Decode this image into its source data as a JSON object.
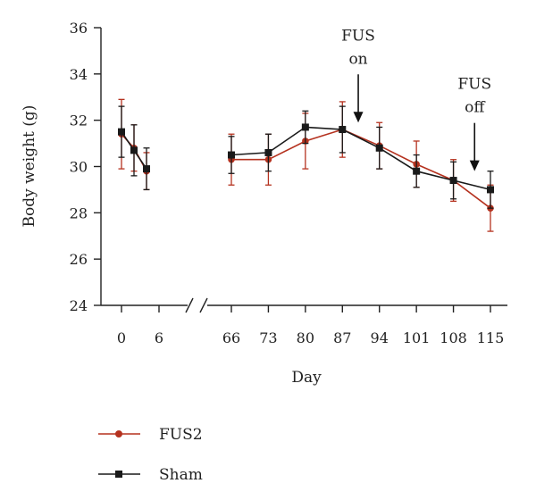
{
  "chart_data": {
    "type": "line",
    "title": "",
    "xlabel": "Day",
    "ylabel": "Body weight (g)",
    "ylim": [
      24,
      36
    ],
    "yticks": [
      24,
      26,
      28,
      30,
      32,
      34,
      36
    ],
    "axis_break": true,
    "x_tick_labels": [
      "0",
      "6",
      "66",
      "73",
      "80",
      "87",
      "94",
      "101",
      "108",
      "115"
    ],
    "grid": false,
    "legend_position": "bottom-left",
    "series": [
      {
        "name": "FUS2",
        "color": "#b5321f",
        "marker": "circle",
        "segments": [
          [
            {
              "day": 0,
              "y": 31.4,
              "err": 1.5
            },
            {
              "day": 2,
              "y": 30.8,
              "err": 1.0
            },
            {
              "day": 4,
              "y": 29.8,
              "err": 0.8
            }
          ],
          [
            {
              "day": 66,
              "y": 30.3,
              "err": 1.1
            },
            {
              "day": 73,
              "y": 30.3,
              "err": 1.1
            },
            {
              "day": 80,
              "y": 31.1,
              "err": 1.2
            },
            {
              "day": 87,
              "y": 31.6,
              "err": 1.2
            },
            {
              "day": 94,
              "y": 30.9,
              "err": 1.0
            },
            {
              "day": 101,
              "y": 30.1,
              "err": 1.0
            },
            {
              "day": 108,
              "y": 29.4,
              "err": 0.9
            },
            {
              "day": 115,
              "y": 28.2,
              "err": 1.0
            }
          ]
        ]
      },
      {
        "name": "Sham",
        "color": "#1a1a1a",
        "marker": "square",
        "segments": [
          [
            {
              "day": 0,
              "y": 31.5,
              "err": 1.1
            },
            {
              "day": 2,
              "y": 30.7,
              "err": 1.1
            },
            {
              "day": 4,
              "y": 29.9,
              "err": 0.9
            }
          ],
          [
            {
              "day": 66,
              "y": 30.5,
              "err": 0.8
            },
            {
              "day": 73,
              "y": 30.6,
              "err": 0.8
            },
            {
              "day": 80,
              "y": 31.7,
              "err": 0.7
            },
            {
              "day": 87,
              "y": 31.6,
              "err": 1.0
            },
            {
              "day": 94,
              "y": 30.8,
              "err": 0.9
            },
            {
              "day": 101,
              "y": 29.8,
              "err": 0.7
            },
            {
              "day": 108,
              "y": 29.4,
              "err": 0.8
            },
            {
              "day": 115,
              "y": 29.0,
              "err": 0.8
            }
          ]
        ]
      }
    ],
    "annotations": [
      {
        "lines": [
          "FUS",
          "on"
        ],
        "arrow_at_day": 90,
        "arrow_to_y": 31.9
      },
      {
        "lines": [
          "FUS",
          "off"
        ],
        "arrow_at_day": 112,
        "arrow_to_y": 29.8
      }
    ]
  }
}
